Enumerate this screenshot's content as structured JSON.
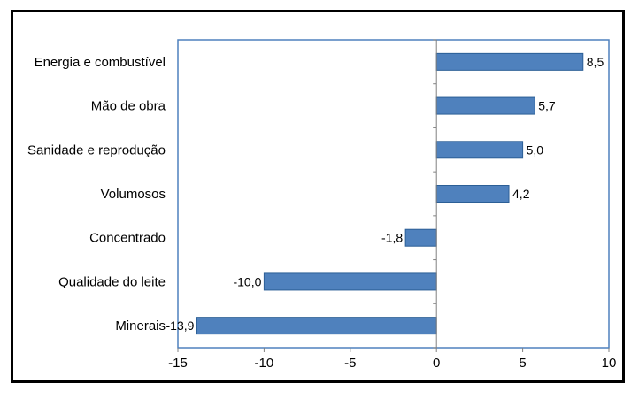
{
  "chart_data": {
    "type": "bar",
    "orientation": "horizontal",
    "categories": [
      "Energia e combustível",
      "Mão de obra",
      "Sanidade e reprodução",
      "Volumosos",
      "Concentrado",
      "Qualidade do leite",
      "Minerais"
    ],
    "values": [
      8.5,
      5.7,
      5.0,
      4.2,
      -1.8,
      -10.0,
      -13.9
    ],
    "data_labels": [
      "8,5",
      "5,7",
      "5,0",
      "4,2",
      "-1,8",
      "-10,0",
      "-13,9"
    ],
    "xlim": [
      -15,
      10
    ],
    "x_ticks": [
      -15,
      -10,
      -5,
      0,
      5,
      10
    ],
    "x_tick_labels": [
      "-15",
      "-10",
      "-5",
      "0",
      "5",
      "10"
    ],
    "title": "",
    "xlabel": "",
    "ylabel": "",
    "grid": false,
    "legend": "none",
    "colors": {
      "bar_fill": "#4f81bd",
      "bar_stroke": "#2c5f96",
      "plot_border": "#4f81bd",
      "axis": "#808080",
      "frame": "#000000"
    }
  }
}
